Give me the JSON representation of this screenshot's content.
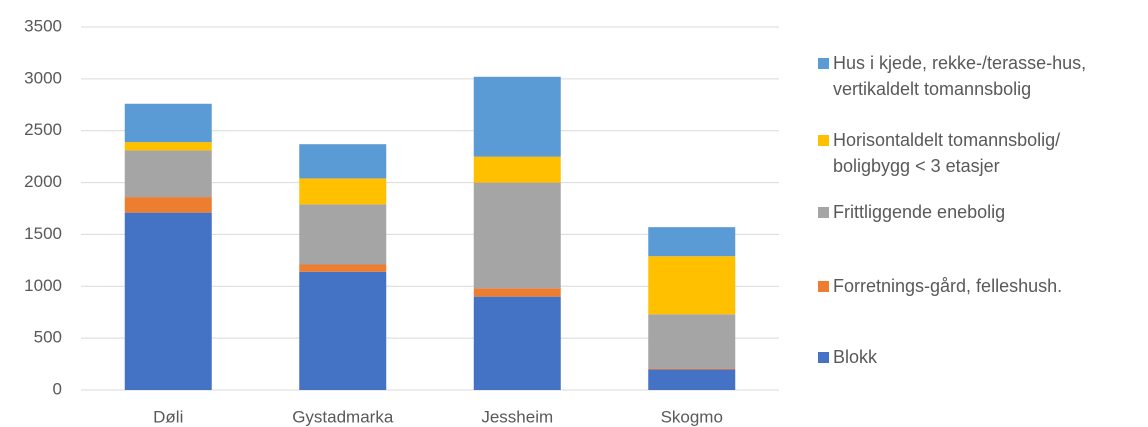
{
  "chart_data": {
    "type": "stacked_bar",
    "categories": [
      "Døli",
      "Gystadmarka",
      "Jessheim",
      "Skogmo"
    ],
    "series": [
      {
        "name": "Blokk",
        "color": "#4472c4",
        "values": [
          1710,
          1140,
          900,
          200
        ]
      },
      {
        "name": "Forretnings-gård, felleshush.",
        "color": "#ed7d31",
        "values": [
          150,
          70,
          80,
          10
        ]
      },
      {
        "name": "Frittliggende enebolig",
        "color": "#a5a5a5",
        "values": [
          450,
          580,
          1020,
          520
        ]
      },
      {
        "name": "Horisontaldelt tomannsbolig/ boligbygg < 3 etasjer",
        "color": "#ffc000",
        "values": [
          80,
          250,
          250,
          560
        ]
      },
      {
        "name": "Hus i kjede, rekke-/terasse-hus, vertikaldelt tomannsbolig",
        "color": "#5b9bd5",
        "values": [
          370,
          330,
          770,
          280
        ]
      }
    ],
    "ylim": [
      0,
      3500
    ],
    "yticks": [
      0,
      500,
      1000,
      1500,
      2000,
      2500,
      3000,
      3500
    ],
    "grid": true,
    "legend": "right"
  }
}
